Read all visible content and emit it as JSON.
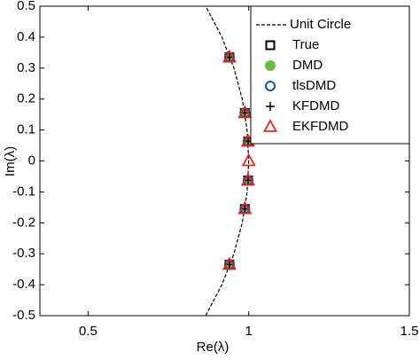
{
  "chart_data": {
    "type": "scatter",
    "x_label": "Re(λ)",
    "y_label": "Im(λ)",
    "xlim": [
      0.35,
      1.5
    ],
    "ylim": [
      -0.5,
      0.5
    ],
    "xticks": [
      0.5,
      1,
      1.5
    ],
    "yticks": [
      -0.5,
      -0.4,
      -0.3,
      -0.2,
      -0.1,
      0,
      0.1,
      0.2,
      0.3,
      0.4,
      0.5
    ],
    "legend": "upper right",
    "series": [
      {
        "name": "Unit Circle",
        "kind": "line",
        "color": "#000000",
        "x": [
          0.866,
          0.9165,
          0.954,
          0.9798,
          0.995,
          1,
          0.995,
          0.9798,
          0.954,
          0.9165,
          0.866
        ],
        "values": [
          -0.5,
          -0.4,
          -0.3,
          -0.2,
          -0.1,
          0,
          0.1,
          0.2,
          0.3,
          0.4,
          0.5
        ]
      },
      {
        "name": "True",
        "marker": "square",
        "color": "#000000",
        "x": [
          0.94,
          0.988,
          0.998,
          0.998,
          0.988,
          0.94
        ],
        "values": [
          0.335,
          0.155,
          0.063,
          -0.063,
          -0.155,
          -0.335
        ]
      },
      {
        "name": "DMD",
        "marker": "dot",
        "color": "#6cbb45",
        "x": [
          0.94,
          0.988,
          0.998,
          0.998,
          0.988,
          0.94
        ],
        "values": [
          0.335,
          0.155,
          0.063,
          -0.063,
          -0.155,
          -0.335
        ]
      },
      {
        "name": "tlsDMD",
        "marker": "circle",
        "color": "#1f4fa8",
        "x": [
          0.94,
          0.988,
          0.998,
          0.998,
          0.988,
          0.94
        ],
        "values": [
          0.335,
          0.155,
          0.063,
          -0.063,
          -0.155,
          -0.335
        ]
      },
      {
        "name": "KFDMD",
        "marker": "plus",
        "color": "#000000",
        "x": [
          0.94,
          0.988,
          0.998,
          0.998,
          0.988,
          0.94
        ],
        "values": [
          0.335,
          0.155,
          0.063,
          -0.063,
          -0.155,
          -0.335
        ]
      },
      {
        "name": "EKFDMD",
        "marker": "triangle",
        "color": "#e8231c",
        "x": [
          0.94,
          0.988,
          0.998,
          1,
          0.998,
          0.988,
          0.94
        ],
        "values": [
          0.335,
          0.155,
          0.063,
          0,
          -0.063,
          -0.155,
          -0.335
        ]
      }
    ]
  }
}
